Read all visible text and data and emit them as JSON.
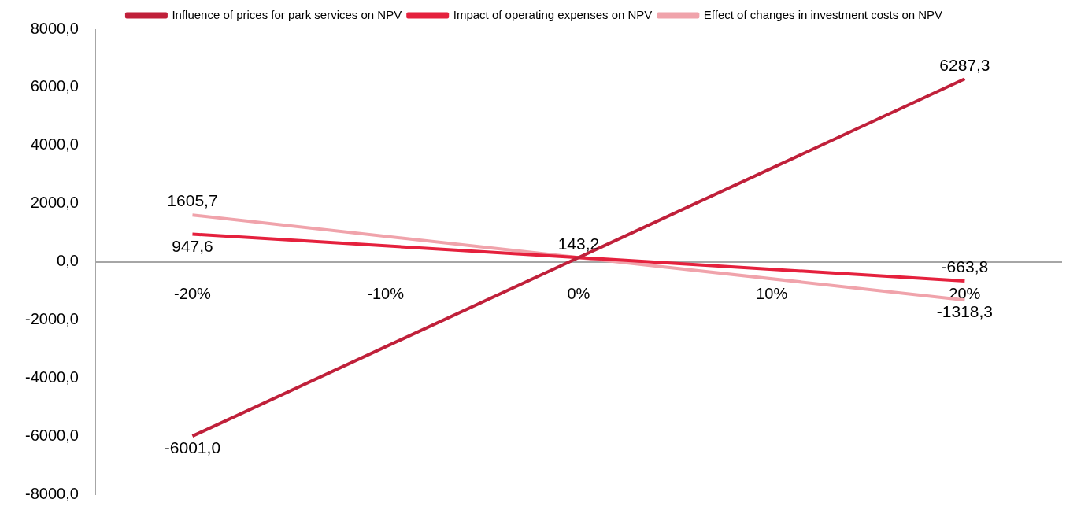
{
  "chart_data": {
    "type": "line",
    "x": [
      -20,
      0,
      20
    ],
    "series": [
      {
        "name": "Influence of prices for park services on NPV",
        "color": "#c0203a",
        "values": [
          -6001.0,
          143.2,
          6287.3
        ],
        "value_labels": [
          "-6001,0",
          null,
          "6287,3"
        ]
      },
      {
        "name": "Impact of operating expenses on NPV",
        "color": "#e5213d",
        "values": [
          947.6,
          143.2,
          -663.8
        ],
        "value_labels": [
          "947,6",
          "143,2",
          "-663,8"
        ]
      },
      {
        "name": "Effect of changes in investment costs on NPV",
        "color": "#f0a3ab",
        "values": [
          1605.7,
          143.2,
          -1318.3
        ],
        "value_labels": [
          "1605,7",
          null,
          "-1318,3"
        ]
      }
    ],
    "xlim": [
      -25,
      25
    ],
    "xticks": [
      {
        "value": -20,
        "label": "-20%"
      },
      {
        "value": -10,
        "label": "-10%"
      },
      {
        "value": 0,
        "label": "0%"
      },
      {
        "value": 10,
        "label": "10%"
      },
      {
        "value": 20,
        "label": "20%"
      }
    ],
    "ylim": [
      -8000,
      8000
    ],
    "yticks": [
      {
        "value": -8000,
        "label": "-8000,0"
      },
      {
        "value": -6000,
        "label": "-6000,0"
      },
      {
        "value": -4000,
        "label": "-4000,0"
      },
      {
        "value": -2000,
        "label": "-2000,0"
      },
      {
        "value": 0,
        "label": "0,0"
      },
      {
        "value": 2000,
        "label": "2000,0"
      },
      {
        "value": 4000,
        "label": "4000,0"
      },
      {
        "value": 6000,
        "label": "6000,0"
      },
      {
        "value": 8000,
        "label": "8000,0"
      }
    ],
    "grid": false,
    "legend": "top",
    "marker": "none",
    "line_style": "solid"
  }
}
